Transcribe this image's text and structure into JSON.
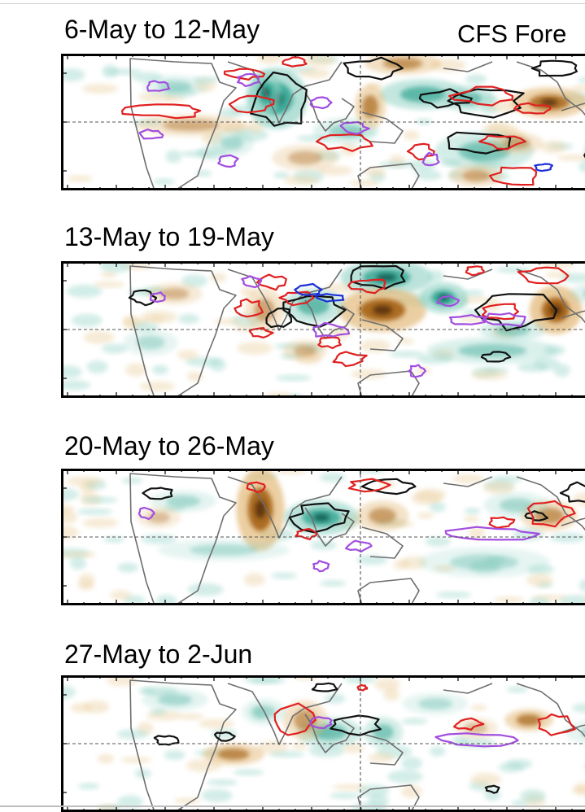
{
  "header": {
    "title": "CFS Fore"
  },
  "panels": [
    {
      "title": "6-May to 12-May"
    },
    {
      "title": "13-May to 19-May"
    },
    {
      "title": "20-May to 26-May"
    },
    {
      "title": "27-May to 2-Jun"
    }
  ],
  "colors": {
    "wet_anomaly": "#3aa996",
    "dry_anomaly": "#a8671c",
    "contour_red": "#e02020",
    "contour_black": "#111111",
    "contour_purple": "#a24de0",
    "contour_blue": "#1d2fd6",
    "coastline": "#6e6e6e"
  }
}
